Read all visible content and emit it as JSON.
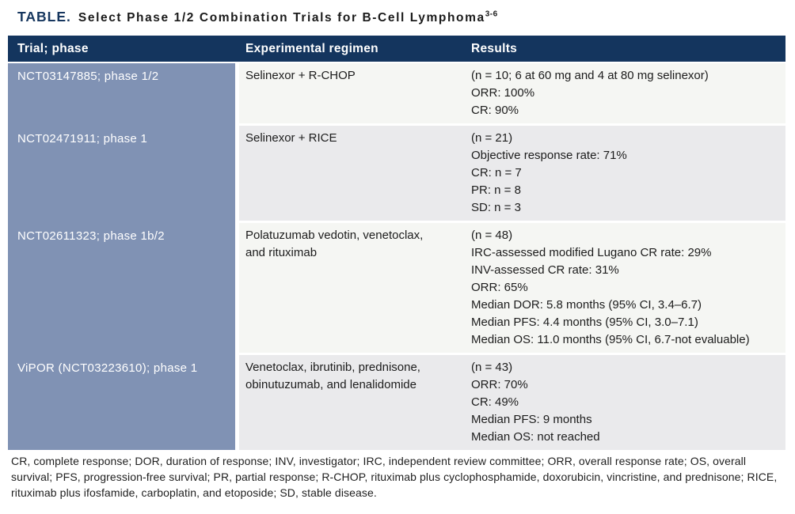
{
  "title": {
    "label": "TABLE.",
    "text": "Select Phase 1/2 Combination Trials for B-Cell Lymphoma",
    "superscript": "3-6"
  },
  "colors": {
    "header_bg": "#14355e",
    "trial_column_bg": "#8092b4",
    "row_light_bg": "#f5f6f3",
    "row_gray_bg": "#eaeaec",
    "title_accent": "#17375f",
    "header_text": "#ffffff"
  },
  "table": {
    "columns": [
      "Trial; phase",
      "Experimental regimen",
      "Results"
    ],
    "rows": [
      {
        "trial": "NCT03147885; phase 1/2",
        "regimen": [
          "Selinexor + R-CHOP"
        ],
        "results": [
          "(n = 10; 6 at 60 mg and 4 at 80 mg selinexor)",
          "ORR: 100%",
          "CR: 90%"
        ],
        "shade": "light"
      },
      {
        "trial": "NCT02471911; phase 1",
        "regimen": [
          "Selinexor + RICE"
        ],
        "results": [
          "(n = 21)",
          "Objective response rate: 71%",
          "CR: n = 7",
          "PR: n = 8",
          "SD: n = 3"
        ],
        "shade": "gray"
      },
      {
        "trial": "NCT02611323; phase 1b/2",
        "regimen": [
          "Polatuzumab vedotin, venetoclax,",
          "and rituximab"
        ],
        "results": [
          "(n = 48)",
          "IRC-assessed modified Lugano CR rate: 29%",
          "INV-assessed CR rate: 31%",
          "ORR: 65%",
          "Median DOR: 5.8 months (95% CI, 3.4–6.7)",
          "Median PFS: 4.4 months (95% CI, 3.0–7.1)",
          "Median OS: 11.0 months (95% CI, 6.7-not evaluable)"
        ],
        "shade": "light"
      },
      {
        "trial": "ViPOR (NCT03223610); phase 1",
        "regimen": [
          "Venetoclax, ibrutinib, prednisone,",
          "obinutuzumab, and lenalidomide"
        ],
        "results": [
          "(n = 43)",
          "ORR: 70%",
          "CR: 49%",
          "Median PFS: 9 months",
          "Median OS: not reached"
        ],
        "shade": "gray"
      }
    ]
  },
  "footnote": "CR, complete response; DOR, duration of response; INV, investigator; IRC, independent review committee; ORR, overall response rate; OS, overall survival; PFS, progression-free survival; PR, partial response; R-CHOP, rituximab plus cyclophosphamide, doxorubicin, vincristine, and prednisone; RICE, rituximab plus ifosfamide, carboplatin, and etoposide; SD, stable disease."
}
